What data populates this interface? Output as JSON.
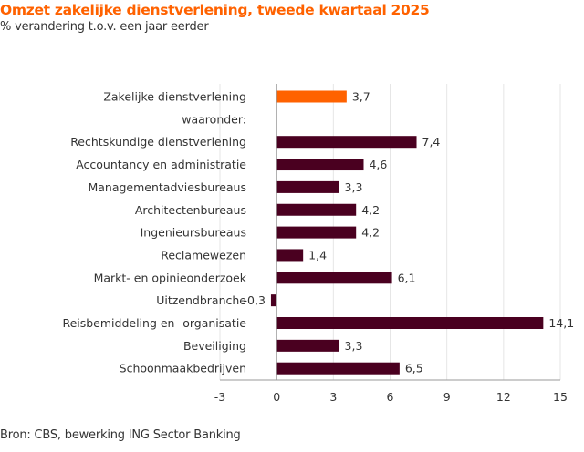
{
  "chart_data": {
    "type": "bar",
    "orientation": "horizontal",
    "title": "Omzet zakelijke dienstverlening, tweede kwartaal 2025",
    "subtitle": "% verandering t.o.v. een jaar eerder",
    "source": "Bron: CBS, bewerking ING Sector Banking",
    "categories": [
      "Zakelijke dienstverlening",
      "waaronder:",
      "Rechtskundige dienstverlening",
      "Accountancy en administratie",
      "Managementadviesbureaus",
      "Architectenbureaus",
      "Ingenieursbureaus",
      "Reclamewezen",
      "Markt- en opinieonderzoek",
      "Uitzendbranche",
      "Reisbemiddeling en -organisatie",
      "Beveiliging",
      "Schoonmaakbedrijven"
    ],
    "values": [
      3.7,
      null,
      7.4,
      4.6,
      3.3,
      4.2,
      4.2,
      1.4,
      6.1,
      -0.3,
      14.1,
      3.3,
      6.5
    ],
    "value_labels": [
      "3,7",
      "",
      "7,4",
      "4,6",
      "3,3",
      "4,2",
      "4,2",
      "1,4",
      "6,1",
      "-0,3",
      "14,1",
      "3,3",
      "6,5"
    ],
    "xlim": [
      -3,
      15
    ],
    "xticks": [
      -3,
      0,
      3,
      6,
      9,
      12,
      15
    ],
    "grid": true,
    "colors": {
      "highlight": "#ff6200",
      "bars": "#4a0020",
      "title": "#ff6200"
    }
  }
}
